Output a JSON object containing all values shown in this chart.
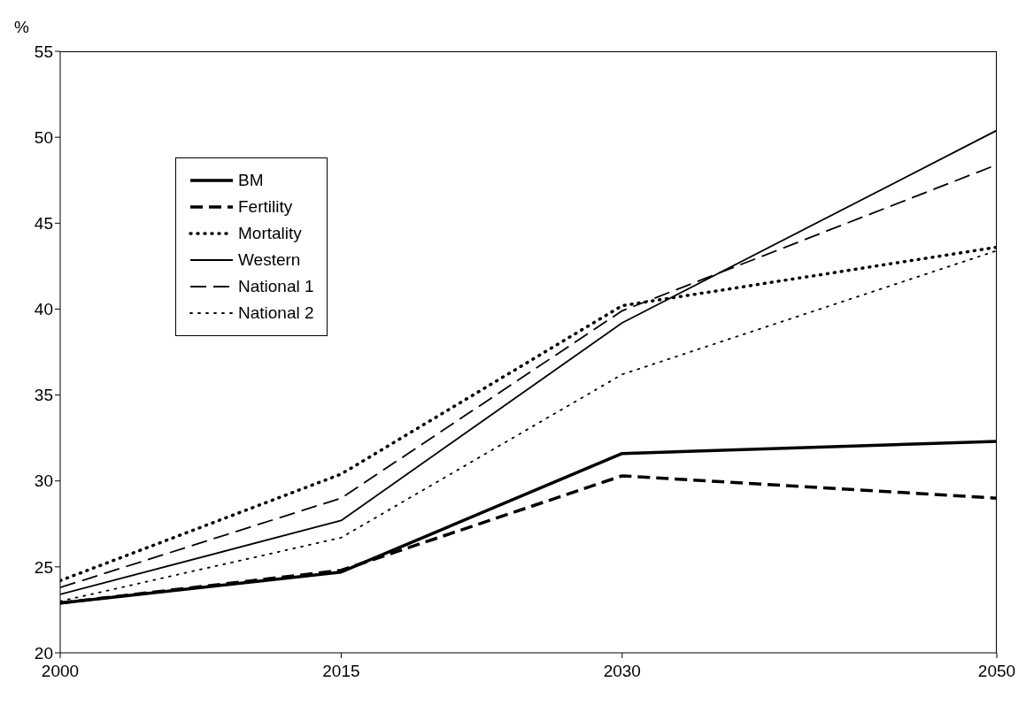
{
  "chart_data": {
    "type": "line",
    "ylabel": "%",
    "x": [
      2000,
      2015,
      2030,
      2050
    ],
    "xlim": [
      2000,
      2050
    ],
    "xticks": [
      2000,
      2015,
      2030,
      2050
    ],
    "ylim": [
      20,
      55
    ],
    "yticks": [
      20,
      25,
      30,
      35,
      40,
      45,
      50,
      55
    ],
    "grid": false,
    "legend": "top left",
    "marker": "none",
    "series": [
      {
        "name": "BM",
        "color": "#000000",
        "line_style": "solid",
        "values": [
          22.9,
          24.7,
          31.6,
          32.3
        ]
      },
      {
        "name": "Fertility",
        "color": "#000000",
        "line_style": "dashed",
        "values": [
          22.9,
          24.8,
          30.3,
          29.0
        ]
      },
      {
        "name": "Mortality",
        "color": "#000000",
        "line_style": "dotted",
        "values": [
          24.2,
          30.4,
          40.2,
          43.6
        ]
      },
      {
        "name": "Western",
        "color": "#000000",
        "line_style": "solid",
        "values": [
          23.4,
          27.7,
          39.2,
          50.4
        ]
      },
      {
        "name": "National 1",
        "color": "#000000",
        "line_style": "dashed",
        "values": [
          23.8,
          29.0,
          39.9,
          48.4
        ]
      },
      {
        "name": "National 2",
        "color": "#000000",
        "line_style": "dotted",
        "values": [
          23.0,
          26.7,
          36.2,
          43.4
        ]
      }
    ]
  }
}
